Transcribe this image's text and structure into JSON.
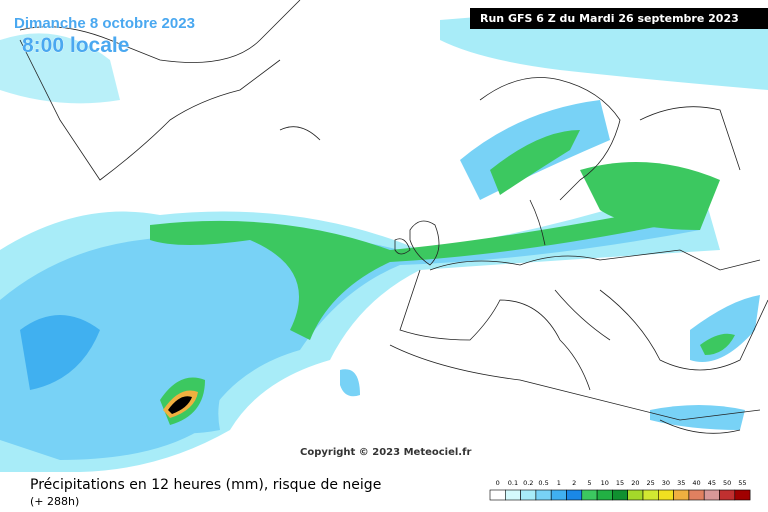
{
  "header": {
    "date": "Dimanche 8 octobre 2023",
    "time": "8:00 locale",
    "run": "Run GFS 6 Z du Mardi 26 septembre 2023"
  },
  "copyright": "Copyright © 2023 Meteociel.fr",
  "footer": {
    "title": "Précipitations en 12 heures (mm), risque de neige",
    "lead": "(+ 288h)"
  },
  "legend": [
    {
      "label": "0",
      "color": "#ffffff"
    },
    {
      "label": "0.1",
      "color": "#d4fafd"
    },
    {
      "label": "0.2",
      "color": "#a8ecf8"
    },
    {
      "label": "0.5",
      "color": "#78d2f6"
    },
    {
      "label": "1",
      "color": "#40b0f0"
    },
    {
      "label": "2",
      "color": "#1a88e6"
    },
    {
      "label": "5",
      "color": "#3cc860"
    },
    {
      "label": "10",
      "color": "#22b044"
    },
    {
      "label": "15",
      "color": "#109030"
    },
    {
      "label": "20",
      "color": "#a4d82a"
    },
    {
      "label": "25",
      "color": "#d2e832"
    },
    {
      "label": "30",
      "color": "#f0e020"
    },
    {
      "label": "35",
      "color": "#f0b040"
    },
    {
      "label": "40",
      "color": "#e08060"
    },
    {
      "label": "45",
      "color": "#d89898"
    },
    {
      "label": "50",
      "color": "#c03030"
    },
    {
      "label": "55",
      "color": "#a00000"
    }
  ]
}
